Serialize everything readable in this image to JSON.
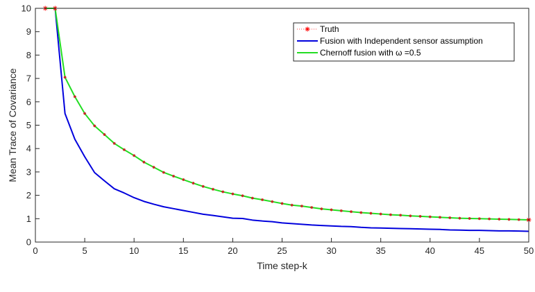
{
  "chart_data": {
    "type": "line",
    "title": "",
    "xlabel": "Time step-k",
    "ylabel": "Mean Trace of Covariance",
    "xlim": [
      0,
      50
    ],
    "ylim": [
      0,
      10
    ],
    "xticks": [
      0,
      5,
      10,
      15,
      20,
      25,
      30,
      35,
      40,
      45,
      50
    ],
    "yticks": [
      0,
      1,
      2,
      3,
      4,
      5,
      6,
      7,
      8,
      9,
      10
    ],
    "grid": false,
    "legend_position": "top-right",
    "series": [
      {
        "name": "Truth",
        "color": "#ff0000",
        "marker": "asterisk",
        "line": false,
        "x": [
          1,
          2,
          50
        ],
        "y": [
          10,
          10,
          0.95
        ]
      },
      {
        "name": "Fusion with Independent sensor assumption",
        "color": "#0000dd",
        "marker": "none",
        "line": true,
        "x": [
          1,
          2,
          3,
          4,
          5,
          6,
          7,
          8,
          9,
          10,
          11,
          12,
          13,
          14,
          15,
          16,
          17,
          18,
          19,
          20,
          21,
          22,
          23,
          24,
          25,
          26,
          27,
          28,
          29,
          30,
          31,
          32,
          33,
          34,
          35,
          36,
          37,
          38,
          39,
          40,
          41,
          42,
          43,
          44,
          45,
          46,
          47,
          48,
          49,
          50
        ],
        "y": [
          10,
          10,
          5.5,
          4.4,
          3.65,
          2.97,
          2.62,
          2.28,
          2.1,
          1.9,
          1.74,
          1.62,
          1.51,
          1.43,
          1.35,
          1.27,
          1.19,
          1.14,
          1.08,
          1.02,
          1.01,
          0.94,
          0.9,
          0.87,
          0.82,
          0.79,
          0.76,
          0.73,
          0.71,
          0.69,
          0.67,
          0.66,
          0.63,
          0.61,
          0.6,
          0.59,
          0.58,
          0.57,
          0.56,
          0.55,
          0.54,
          0.52,
          0.51,
          0.5,
          0.5,
          0.49,
          0.48,
          0.48,
          0.47,
          0.46
        ]
      },
      {
        "name": "Chernoff fusion with ω =0.5",
        "color": "#22dd22",
        "marker": "none",
        "line": true,
        "x": [
          1,
          2,
          3,
          4,
          5,
          6,
          7,
          8,
          9,
          10,
          11,
          12,
          13,
          14,
          15,
          16,
          17,
          18,
          19,
          20,
          21,
          22,
          23,
          24,
          25,
          26,
          27,
          28,
          29,
          30,
          31,
          32,
          33,
          34,
          35,
          36,
          37,
          38,
          39,
          40,
          41,
          42,
          43,
          44,
          45,
          46,
          47,
          48,
          49,
          50
        ],
        "y": [
          10,
          10,
          7.05,
          6.22,
          5.5,
          4.97,
          4.6,
          4.22,
          3.95,
          3.7,
          3.42,
          3.2,
          2.98,
          2.82,
          2.67,
          2.52,
          2.38,
          2.26,
          2.15,
          2.06,
          1.98,
          1.88,
          1.81,
          1.73,
          1.65,
          1.58,
          1.54,
          1.48,
          1.42,
          1.38,
          1.34,
          1.3,
          1.26,
          1.23,
          1.2,
          1.17,
          1.15,
          1.12,
          1.1,
          1.08,
          1.06,
          1.04,
          1.02,
          1.01,
          1.0,
          0.99,
          0.98,
          0.97,
          0.96,
          0.95
        ]
      }
    ],
    "legend": [
      {
        "label": "Truth",
        "color": "#ff0000",
        "marker": "asterisk"
      },
      {
        "label": "Fusion with Independent sensor assumption",
        "color": "#0000dd",
        "marker": "line"
      },
      {
        "label": "Chernoff fusion with ω =0.5",
        "color": "#22dd22",
        "marker": "line"
      }
    ]
  }
}
